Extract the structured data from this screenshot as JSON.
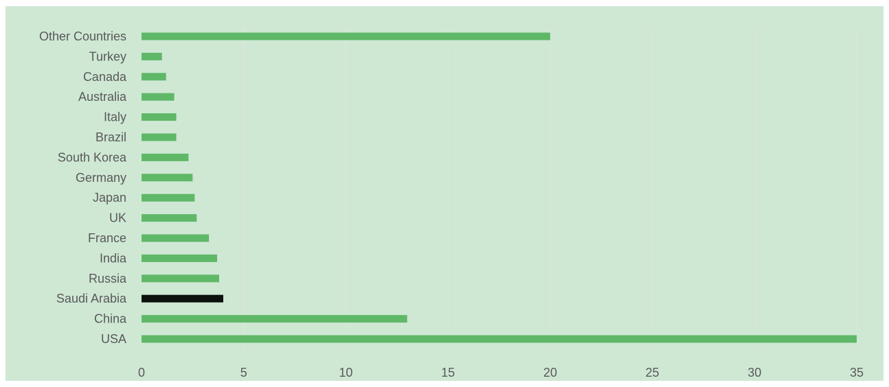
{
  "chart_data": {
    "type": "bar",
    "orientation": "horizontal",
    "title": "",
    "xlabel": "",
    "ylabel": "",
    "xlim": [
      0,
      35
    ],
    "x_ticks": [
      0,
      5,
      10,
      15,
      20,
      25,
      30,
      35
    ],
    "grid": "vertical",
    "legend": "none",
    "categories": [
      "USA",
      "China",
      "Saudi Arabia",
      "Russia",
      "India",
      "France",
      "UK",
      "Japan",
      "Germany",
      "South Korea",
      "Brazil",
      "Italy",
      "Australia",
      "Canada",
      "Turkey",
      "Other Countries"
    ],
    "values": [
      35,
      13,
      4,
      3.8,
      3.7,
      3.3,
      2.7,
      2.6,
      2.5,
      2.3,
      1.7,
      1.7,
      1.6,
      1.2,
      1.0,
      20
    ],
    "highlight_category": "Saudi Arabia",
    "colors": {
      "background": "#cfe8d4",
      "bar": "#5fb868",
      "highlight_bar": "#0d120e",
      "grid": "#e2e2e2",
      "text": "#595959"
    }
  }
}
